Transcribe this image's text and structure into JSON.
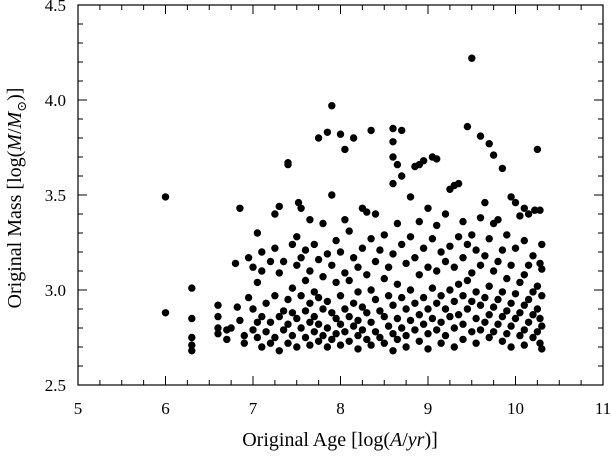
{
  "chart_data": {
    "type": "scatter",
    "title": "",
    "xlabel": {
      "prefix": "Original Age [log(",
      "var": "A",
      "slash": "/",
      "unit": "yr",
      "suffix": ")]"
    },
    "ylabel": {
      "prefix": "Original Mass [log(",
      "var": "M",
      "slash": "/",
      "unit": "M",
      "sub": "⊙",
      "suffix": ")]"
    },
    "xlim": [
      5,
      11
    ],
    "ylim": [
      2.5,
      4.5
    ],
    "x_ticks": [
      5,
      6,
      7,
      8,
      9,
      10,
      11
    ],
    "x_tick_labels": [
      "5",
      "6",
      "7",
      "8",
      "9",
      "10",
      "11"
    ],
    "y_ticks": [
      2.5,
      3.0,
      3.5,
      4.0,
      4.5
    ],
    "y_tick_labels": [
      "2.5",
      "3.0",
      "3.5",
      "4.0",
      "4.5"
    ],
    "grid": false,
    "legend": "none",
    "marker_color": "#000000",
    "series": [
      {
        "points": [
          [
            6.0,
            3.49
          ],
          [
            6.0,
            2.88
          ],
          [
            6.3,
            3.01
          ],
          [
            6.3,
            2.85
          ],
          [
            6.3,
            2.75
          ],
          [
            6.3,
            2.71
          ],
          [
            6.3,
            2.68
          ],
          [
            6.6,
            2.92
          ],
          [
            6.6,
            2.86
          ],
          [
            6.6,
            2.8
          ],
          [
            6.6,
            2.77
          ],
          [
            6.7,
            2.79
          ],
          [
            6.7,
            2.74
          ],
          [
            6.75,
            2.8
          ],
          [
            6.8,
            3.14
          ],
          [
            6.82,
            2.91
          ],
          [
            6.85,
            3.43
          ],
          [
            6.85,
            2.84
          ],
          [
            6.9,
            2.76
          ],
          [
            6.9,
            2.72
          ],
          [
            6.95,
            3.17
          ],
          [
            6.95,
            2.96
          ],
          [
            7.0,
            3.12
          ],
          [
            7.0,
            2.9
          ],
          [
            7.0,
            2.79
          ],
          [
            7.05,
            3.3
          ],
          [
            7.05,
            3.04
          ],
          [
            7.05,
            2.83
          ],
          [
            7.05,
            2.75
          ],
          [
            7.1,
            3.2
          ],
          [
            7.1,
            3.1
          ],
          [
            7.1,
            2.86
          ],
          [
            7.1,
            2.7
          ],
          [
            7.15,
            2.93
          ],
          [
            7.15,
            2.78
          ],
          [
            7.2,
            3.15
          ],
          [
            7.2,
            2.83
          ],
          [
            7.2,
            2.72
          ],
          [
            7.25,
            3.4
          ],
          [
            7.25,
            3.22
          ],
          [
            7.25,
            2.97
          ],
          [
            7.25,
            2.75
          ],
          [
            7.3,
            3.44
          ],
          [
            7.3,
            3.09
          ],
          [
            7.3,
            2.86
          ],
          [
            7.3,
            2.68
          ],
          [
            7.35,
            3.15
          ],
          [
            7.35,
            2.89
          ],
          [
            7.35,
            2.79
          ],
          [
            7.4,
            3.67
          ],
          [
            7.4,
            3.66
          ],
          [
            7.4,
            2.95
          ],
          [
            7.4,
            2.82
          ],
          [
            7.4,
            2.72
          ],
          [
            7.45,
            3.24
          ],
          [
            7.45,
            3.01
          ],
          [
            7.45,
            2.88
          ],
          [
            7.45,
            2.76
          ],
          [
            7.5,
            3.28
          ],
          [
            7.5,
            3.13
          ],
          [
            7.5,
            2.85
          ],
          [
            7.5,
            2.7
          ],
          [
            7.52,
            3.46
          ],
          [
            7.55,
            3.43
          ],
          [
            7.55,
            3.17
          ],
          [
            7.55,
            2.97
          ],
          [
            7.55,
            2.8
          ],
          [
            7.6,
            3.21
          ],
          [
            7.6,
            3.05
          ],
          [
            7.6,
            2.89
          ],
          [
            7.6,
            2.75
          ],
          [
            7.65,
            3.37
          ],
          [
            7.65,
            3.1
          ],
          [
            7.65,
            2.93
          ],
          [
            7.65,
            2.83
          ],
          [
            7.65,
            2.71
          ],
          [
            7.7,
            3.24
          ],
          [
            7.7,
            2.99
          ],
          [
            7.7,
            2.86
          ],
          [
            7.7,
            2.78
          ],
          [
            7.75,
            3.8
          ],
          [
            7.75,
            3.16
          ],
          [
            7.75,
            2.96
          ],
          [
            7.75,
            2.82
          ],
          [
            7.75,
            2.73
          ],
          [
            7.8,
            3.35
          ],
          [
            7.8,
            3.07
          ],
          [
            7.8,
            2.9
          ],
          [
            7.8,
            2.76
          ],
          [
            7.85,
            3.83
          ],
          [
            7.85,
            3.19
          ],
          [
            7.85,
            2.94
          ],
          [
            7.85,
            2.8
          ],
          [
            7.85,
            2.7
          ],
          [
            7.9,
            3.97
          ],
          [
            7.9,
            3.5
          ],
          [
            7.9,
            3.13
          ],
          [
            7.9,
            2.88
          ],
          [
            7.9,
            2.74
          ],
          [
            7.95,
            3.26
          ],
          [
            7.95,
            3.04
          ],
          [
            7.95,
            2.85
          ],
          [
            7.95,
            2.77
          ],
          [
            8.0,
            3.82
          ],
          [
            8.0,
            3.2
          ],
          [
            8.0,
            2.97
          ],
          [
            8.0,
            2.82
          ],
          [
            8.0,
            2.71
          ],
          [
            8.05,
            3.74
          ],
          [
            8.05,
            3.37
          ],
          [
            8.05,
            3.09
          ],
          [
            8.05,
            2.9
          ],
          [
            8.05,
            2.78
          ],
          [
            8.1,
            3.31
          ],
          [
            8.1,
            3.05
          ],
          [
            8.1,
            2.86
          ],
          [
            8.1,
            2.73
          ],
          [
            8.15,
            3.8
          ],
          [
            8.15,
            3.17
          ],
          [
            8.15,
            2.93
          ],
          [
            8.15,
            2.81
          ],
          [
            8.2,
            3.12
          ],
          [
            8.2,
            2.99
          ],
          [
            8.2,
            2.84
          ],
          [
            8.2,
            2.76
          ],
          [
            8.2,
            2.69
          ],
          [
            8.25,
            3.43
          ],
          [
            8.25,
            3.22
          ],
          [
            8.25,
            2.91
          ],
          [
            8.25,
            2.79
          ],
          [
            8.3,
            3.41
          ],
          [
            8.3,
            3.08
          ],
          [
            8.3,
            2.88
          ],
          [
            8.3,
            2.74
          ],
          [
            8.35,
            3.84
          ],
          [
            8.35,
            3.27
          ],
          [
            8.35,
            3.0
          ],
          [
            8.35,
            2.83
          ],
          [
            8.35,
            2.71
          ],
          [
            8.4,
            3.4
          ],
          [
            8.4,
            3.15
          ],
          [
            8.4,
            2.95
          ],
          [
            8.4,
            2.78
          ],
          [
            8.45,
            3.21
          ],
          [
            8.45,
            2.89
          ],
          [
            8.45,
            2.75
          ],
          [
            8.5,
            3.29
          ],
          [
            8.5,
            3.06
          ],
          [
            8.5,
            2.86
          ],
          [
            8.5,
            2.72
          ],
          [
            8.55,
            3.12
          ],
          [
            8.55,
            2.97
          ],
          [
            8.55,
            2.81
          ],
          [
            8.6,
            3.85
          ],
          [
            8.6,
            3.78
          ],
          [
            8.6,
            3.7
          ],
          [
            8.6,
            3.56
          ],
          [
            8.6,
            3.19
          ],
          [
            8.6,
            2.92
          ],
          [
            8.6,
            2.77
          ],
          [
            8.6,
            2.68
          ],
          [
            8.65,
            3.66
          ],
          [
            8.65,
            3.35
          ],
          [
            8.65,
            3.03
          ],
          [
            8.65,
            2.85
          ],
          [
            8.65,
            2.74
          ],
          [
            8.7,
            3.84
          ],
          [
            8.7,
            3.6
          ],
          [
            8.7,
            3.24
          ],
          [
            8.7,
            2.96
          ],
          [
            8.7,
            2.8
          ],
          [
            8.75,
            3.14
          ],
          [
            8.75,
            2.9
          ],
          [
            8.75,
            2.76
          ],
          [
            8.75,
            2.7
          ],
          [
            8.8,
            3.49
          ],
          [
            8.8,
            3.28
          ],
          [
            8.8,
            3.0
          ],
          [
            8.8,
            2.84
          ],
          [
            8.85,
            3.65
          ],
          [
            8.85,
            3.17
          ],
          [
            8.85,
            2.93
          ],
          [
            8.85,
            2.79
          ],
          [
            8.9,
            3.66
          ],
          [
            8.9,
            3.36
          ],
          [
            8.9,
            3.08
          ],
          [
            8.9,
            2.87
          ],
          [
            8.9,
            2.73
          ],
          [
            8.95,
            3.68
          ],
          [
            8.95,
            3.22
          ],
          [
            8.95,
            2.96
          ],
          [
            8.95,
            2.82
          ],
          [
            9.0,
            3.43
          ],
          [
            9.0,
            3.12
          ],
          [
            9.0,
            2.9
          ],
          [
            9.0,
            2.77
          ],
          [
            9.0,
            2.69
          ],
          [
            9.05,
            3.7
          ],
          [
            9.05,
            3.27
          ],
          [
            9.05,
            3.01
          ],
          [
            9.05,
            2.85
          ],
          [
            9.1,
            3.69
          ],
          [
            9.1,
            3.34
          ],
          [
            9.1,
            3.1
          ],
          [
            9.1,
            2.93
          ],
          [
            9.1,
            2.79
          ],
          [
            9.15,
            3.2
          ],
          [
            9.15,
            2.97
          ],
          [
            9.15,
            2.83
          ],
          [
            9.15,
            2.72
          ],
          [
            9.2,
            3.4
          ],
          [
            9.2,
            3.15
          ],
          [
            9.2,
            2.9
          ],
          [
            9.2,
            2.76
          ],
          [
            9.25,
            3.53
          ],
          [
            9.25,
            3.23
          ],
          [
            9.25,
            3.0
          ],
          [
            9.25,
            2.86
          ],
          [
            9.3,
            3.55
          ],
          [
            9.3,
            3.12
          ],
          [
            9.3,
            2.94
          ],
          [
            9.3,
            2.8
          ],
          [
            9.3,
            2.7
          ],
          [
            9.35,
            3.56
          ],
          [
            9.35,
            3.28
          ],
          [
            9.35,
            3.03
          ],
          [
            9.35,
            2.87
          ],
          [
            9.4,
            3.36
          ],
          [
            9.4,
            3.17
          ],
          [
            9.4,
            2.97
          ],
          [
            9.4,
            2.82
          ],
          [
            9.4,
            2.74
          ],
          [
            9.45,
            3.86
          ],
          [
            9.45,
            3.24
          ],
          [
            9.45,
            3.05
          ],
          [
            9.45,
            2.9
          ],
          [
            9.5,
            4.22
          ],
          [
            9.5,
            3.29
          ],
          [
            9.5,
            3.09
          ],
          [
            9.5,
            2.94
          ],
          [
            9.5,
            2.78
          ],
          [
            9.55,
            3.21
          ],
          [
            9.55,
            2.99
          ],
          [
            9.55,
            2.85
          ],
          [
            9.55,
            2.72
          ],
          [
            9.6,
            3.81
          ],
          [
            9.6,
            3.38
          ],
          [
            9.6,
            3.13
          ],
          [
            9.6,
            2.92
          ],
          [
            9.6,
            2.79
          ],
          [
            9.65,
            3.46
          ],
          [
            9.65,
            3.18
          ],
          [
            9.65,
            2.96
          ],
          [
            9.65,
            2.83
          ],
          [
            9.7,
            3.77
          ],
          [
            9.7,
            3.27
          ],
          [
            9.7,
            3.02
          ],
          [
            9.7,
            2.87
          ],
          [
            9.7,
            2.75
          ],
          [
            9.75,
            3.71
          ],
          [
            9.75,
            3.35
          ],
          [
            9.75,
            3.1
          ],
          [
            9.75,
            2.91
          ],
          [
            9.75,
            2.78
          ],
          [
            9.8,
            3.37
          ],
          [
            9.8,
            3.15
          ],
          [
            9.8,
            2.95
          ],
          [
            9.8,
            2.82
          ],
          [
            9.85,
            3.64
          ],
          [
            9.85,
            3.21
          ],
          [
            9.85,
            2.99
          ],
          [
            9.85,
            2.86
          ],
          [
            9.85,
            2.73
          ],
          [
            9.9,
            3.29
          ],
          [
            9.9,
            3.06
          ],
          [
            9.9,
            2.89
          ],
          [
            9.9,
            2.77
          ],
          [
            9.95,
            3.49
          ],
          [
            9.95,
            3.13
          ],
          [
            9.95,
            2.93
          ],
          [
            9.95,
            2.81
          ],
          [
            9.95,
            2.7
          ],
          [
            10.0,
            3.46
          ],
          [
            10.0,
            3.22
          ],
          [
            10.0,
            2.98
          ],
          [
            10.0,
            2.85
          ],
          [
            10.05,
            3.39
          ],
          [
            10.05,
            3.04
          ],
          [
            10.05,
            2.88
          ],
          [
            10.05,
            2.76
          ],
          [
            10.1,
            3.43
          ],
          [
            10.1,
            3.26
          ],
          [
            10.1,
            3.08
          ],
          [
            10.1,
            2.92
          ],
          [
            10.1,
            2.79
          ],
          [
            10.1,
            2.71
          ],
          [
            10.15,
            3.4
          ],
          [
            10.15,
            3.13
          ],
          [
            10.15,
            2.95
          ],
          [
            10.15,
            2.83
          ],
          [
            10.2,
            3.18
          ],
          [
            10.2,
            2.99
          ],
          [
            10.2,
            2.87
          ],
          [
            10.2,
            2.75
          ],
          [
            10.22,
            3.42
          ],
          [
            10.25,
            3.74
          ],
          [
            10.25,
            3.02
          ],
          [
            10.25,
            2.9
          ],
          [
            10.25,
            2.78
          ],
          [
            10.28,
            3.42
          ],
          [
            10.28,
            3.14
          ],
          [
            10.28,
            2.85
          ],
          [
            10.28,
            2.72
          ],
          [
            10.3,
            3.24
          ],
          [
            10.3,
            3.11
          ],
          [
            10.3,
            2.97
          ],
          [
            10.3,
            2.81
          ],
          [
            10.3,
            2.69
          ]
        ]
      }
    ]
  }
}
